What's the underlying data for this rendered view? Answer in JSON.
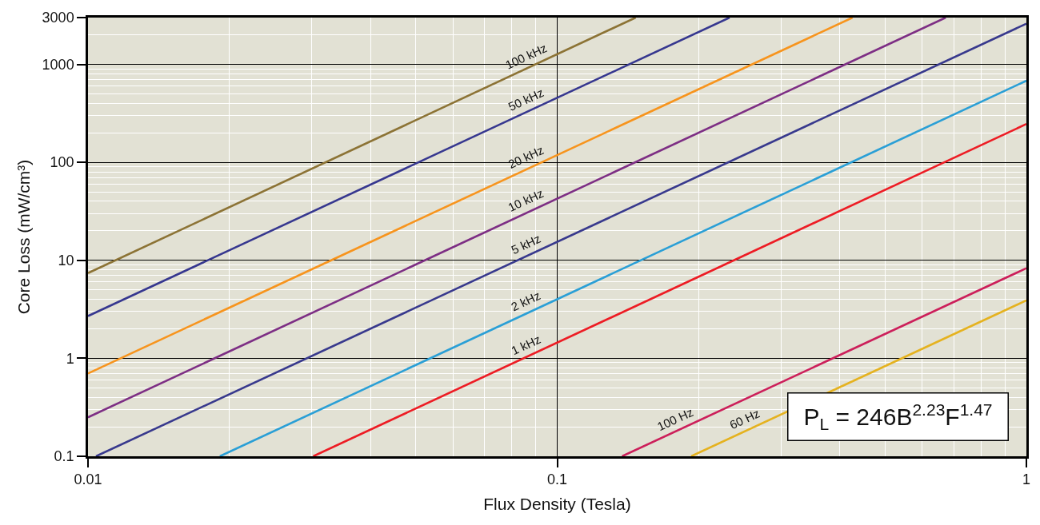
{
  "chart_data": {
    "type": "line",
    "xlabel": "Flux Density (Tesla)",
    "ylabel": "Core Loss (mW/cm³)",
    "log": "xy",
    "xlim": [
      0.01,
      1
    ],
    "ylim": [
      0.1,
      3000
    ],
    "xticks": [
      0.01,
      0.1,
      1
    ],
    "yticks": [
      0.1,
      1,
      10,
      100,
      1000,
      3000
    ],
    "grid": true,
    "legend": false,
    "line_style": "solid",
    "annotations": [
      "P$_{L}$ = 246B$^{2.23}$F$^{1.47}$"
    ],
    "series": [
      {
        "name": "100 kHz",
        "color": "#8c7335",
        "x": [
          0.01,
          0.147
        ],
        "values": [
          7.4,
          3000
        ]
      },
      {
        "name": "50 kHz",
        "color": "#36378f",
        "x": [
          0.01,
          0.233
        ],
        "values": [
          2.7,
          3000
        ]
      },
      {
        "name": "20 kHz",
        "color": "#f7941d",
        "x": [
          0.01,
          0.426
        ],
        "values": [
          0.7,
          3000
        ]
      },
      {
        "name": "10 kHz",
        "color": "#7d2e84",
        "x": [
          0.01,
          0.673
        ],
        "values": [
          0.25,
          3000
        ]
      },
      {
        "name": "5 kHz",
        "color": "#38398d",
        "x": [
          0.0104,
          1
        ],
        "values": [
          0.1,
          2600
        ]
      },
      {
        "name": "2 kHz",
        "color": "#2a9fd6",
        "x": [
          0.0191,
          1
        ],
        "values": [
          0.1,
          680
        ]
      },
      {
        "name": "1 kHz",
        "color": "#ed1c24",
        "x": [
          0.0302,
          1
        ],
        "values": [
          0.1,
          246
        ]
      },
      {
        "name": "100 Hz",
        "color": "#cc1f5a",
        "x": [
          0.1375,
          1
        ],
        "values": [
          0.1,
          8.3
        ]
      },
      {
        "name": "60 Hz",
        "color": "#e5b21f",
        "x": [
          0.193,
          1
        ],
        "values": [
          0.1,
          3.9
        ]
      }
    ]
  }
}
